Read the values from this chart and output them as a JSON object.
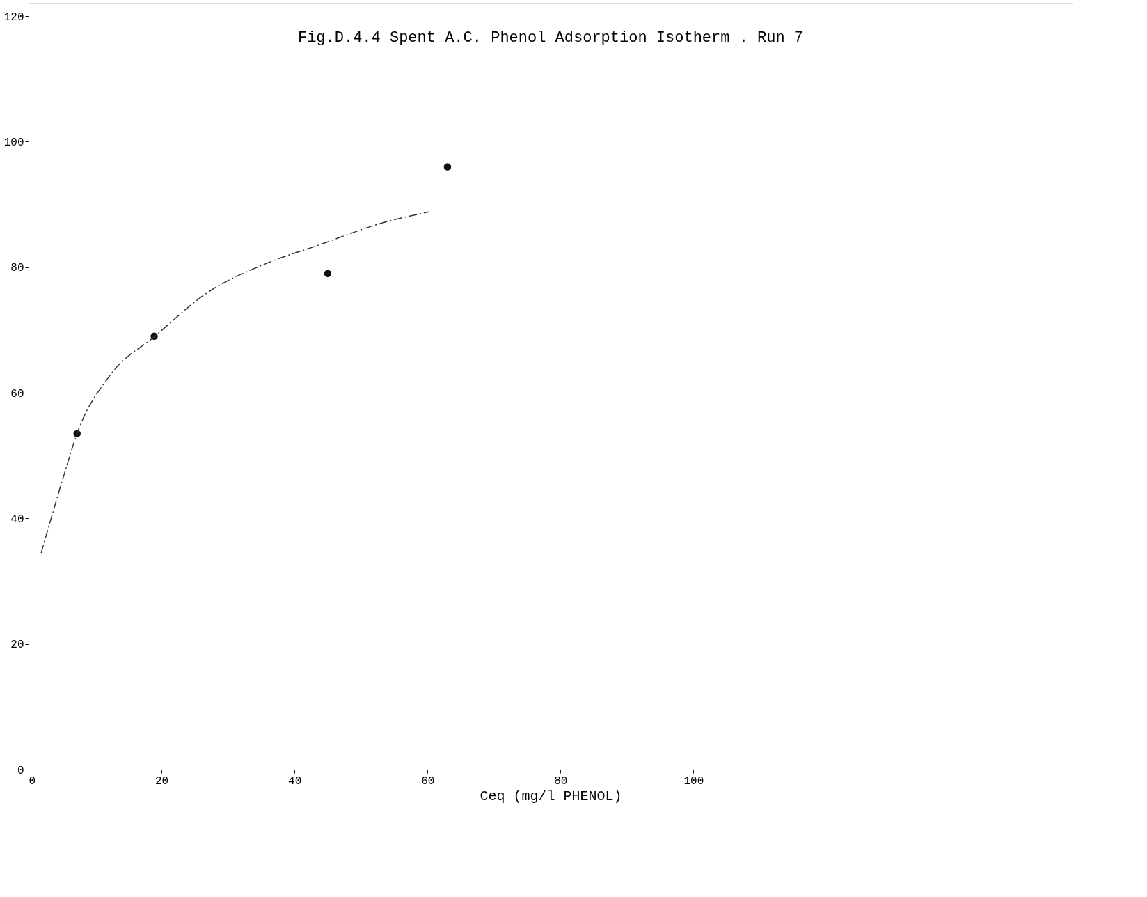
{
  "chart_data": {
    "type": "scatter",
    "title": "Fig.D.4.4   Spent A.C. Phenol Adsorption Isotherm . Run  7",
    "xlabel": "Ceq (mg/l  PHENOL)",
    "xlim": [
      0,
      157
    ],
    "ylim": [
      0,
      122
    ],
    "xticks": [
      0,
      20,
      40,
      60,
      80,
      100
    ],
    "yticks": [
      0,
      20,
      40,
      60,
      80,
      100,
      120
    ],
    "grid": false,
    "marker": "circle",
    "series": [
      {
        "color": "#111111",
        "x": [
          7.3,
          18.9,
          45,
          63
        ],
        "values": [
          53.5,
          69,
          79,
          96
        ]
      },
      {
        "type": "line",
        "color": "#333333",
        "line_style": "dashed",
        "marker": "none",
        "x": [
          1.9,
          3.4,
          5.5,
          7.3,
          12.2,
          19,
          26.7,
          36,
          43.3,
          53.7,
          60.2
        ],
        "values": [
          34.5,
          40,
          47.5,
          53.5,
          62.7,
          69,
          75.8,
          80.7,
          83.4,
          87.2,
          88.8
        ]
      }
    ]
  }
}
